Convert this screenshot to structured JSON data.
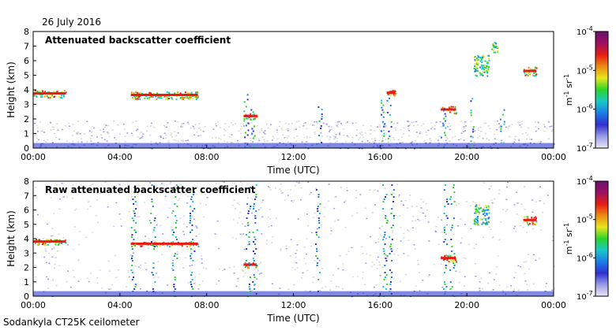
{
  "date_label": "26 July 2016",
  "footer_label": "Sodankyla CT25K ceilometer",
  "colors": {
    "background_gray": "#d6d6d6",
    "low_blue": "#5560d8",
    "colormap": [
      "#ece8f4",
      "#9a9ce8",
      "#3030d0",
      "#1c7ce6",
      "#18c8c8",
      "#2cd42c",
      "#e6e61c",
      "#ec8c14",
      "#e81c14",
      "#9c1060",
      "#6c1070"
    ]
  },
  "chart_data": [
    {
      "type": "heatmap",
      "title": "Attenuated backscatter coefficient",
      "xlabel": "Time (UTC)",
      "ylabel": "Height (km)",
      "xlim": [
        "00:00",
        "00:00"
      ],
      "xticks": [
        "00:00",
        "04:00",
        "08:00",
        "12:00",
        "16:00",
        "20:00",
        "00:00"
      ],
      "ylim": [
        0,
        8
      ],
      "yticks": [
        "0",
        "1",
        "2",
        "3",
        "4",
        "5",
        "6",
        "7",
        "8"
      ],
      "colorbar": {
        "scale": "log",
        "range": [
          1e-07,
          0.0001
        ],
        "tick_labels": [
          "10",
          "10",
          "10",
          "10"
        ],
        "tick_exponents": [
          "-7",
          "-6",
          "-5",
          "-4"
        ],
        "unit": "m",
        "unit_exp1": "-1",
        "unit_mid": " sr",
        "unit_exp2": "-1"
      },
      "layers": [
        {
          "t": [
            0.0,
            1.5
          ],
          "h": [
            3.5,
            4.0
          ],
          "level": "high"
        },
        {
          "t": [
            4.5,
            7.6
          ],
          "h": [
            3.4,
            3.9
          ],
          "level": "high"
        },
        {
          "t": [
            9.7,
            10.3
          ],
          "h": [
            2.0,
            2.4
          ],
          "level": "high"
        },
        {
          "t": [
            16.3,
            16.7
          ],
          "h": [
            3.6,
            4.0
          ],
          "level": "high"
        },
        {
          "t": [
            18.8,
            19.5
          ],
          "h": [
            2.4,
            2.9
          ],
          "level": "high"
        },
        {
          "t": [
            22.6,
            23.2
          ],
          "h": [
            5.0,
            5.6
          ],
          "level": "high"
        },
        {
          "t": [
            20.3,
            21.0
          ],
          "h": [
            5.0,
            6.4
          ],
          "level": "mid"
        },
        {
          "t": [
            21.1,
            21.4
          ],
          "h": [
            6.6,
            7.3
          ],
          "level": "mid"
        }
      ]
    },
    {
      "type": "heatmap",
      "title": "Raw attenuated backscatter coefficient",
      "xlabel": "Time (UTC)",
      "ylabel": "Height (km)",
      "xlim": [
        "00:00",
        "00:00"
      ],
      "xticks": [
        "00:00",
        "04:00",
        "08:00",
        "12:00",
        "16:00",
        "20:00",
        "00:00"
      ],
      "ylim": [
        0,
        8
      ],
      "yticks": [
        "0",
        "1",
        "2",
        "3",
        "4",
        "5",
        "6",
        "7",
        "8"
      ],
      "colorbar": {
        "scale": "log",
        "range": [
          1e-07,
          0.0001
        ],
        "tick_labels": [
          "10",
          "10",
          "10",
          "10"
        ],
        "tick_exponents": [
          "-7",
          "-6",
          "-5",
          "-4"
        ],
        "unit": "m",
        "unit_exp1": "-1",
        "unit_mid": " sr",
        "unit_exp2": "-1"
      },
      "layers": [
        {
          "t": [
            0.0,
            1.5
          ],
          "h": [
            3.6,
            4.0
          ],
          "level": "high"
        },
        {
          "t": [
            4.5,
            7.6
          ],
          "h": [
            3.5,
            3.8
          ],
          "level": "high"
        },
        {
          "t": [
            9.7,
            10.3
          ],
          "h": [
            2.0,
            2.4
          ],
          "level": "high"
        },
        {
          "t": [
            18.8,
            19.5
          ],
          "h": [
            2.4,
            2.9
          ],
          "level": "high"
        },
        {
          "t": [
            22.6,
            23.2
          ],
          "h": [
            5.0,
            5.6
          ],
          "level": "high"
        },
        {
          "t": [
            20.3,
            21.0
          ],
          "h": [
            5.0,
            6.4
          ],
          "level": "mid"
        }
      ]
    }
  ]
}
